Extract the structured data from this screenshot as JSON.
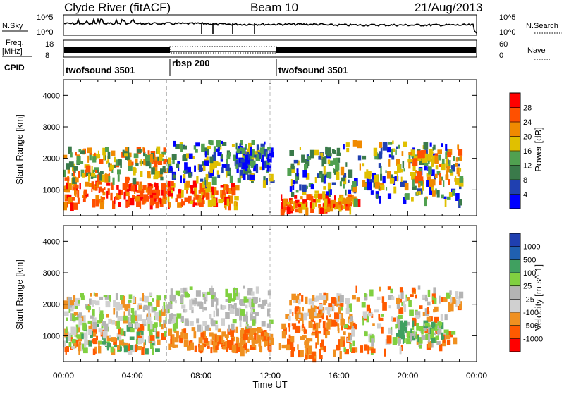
{
  "header": {
    "title": "Clyde River (fitACF)",
    "beam": "Beam 10",
    "date": "21/Aug/2013"
  },
  "nsky_panel": {
    "left_label": "N.Sky",
    "right_label": "N.Search",
    "left_ticks": [
      "10^5",
      "10^0"
    ],
    "right_ticks": [
      "10^5",
      "10^0"
    ]
  },
  "freq_panel": {
    "left_label": "Freq.",
    "left_unit": "[MHz]",
    "right_label": "Nave",
    "left_ticks": [
      "18",
      "8"
    ],
    "right_ticks": [
      "60",
      "0"
    ]
  },
  "cpid": {
    "label": "CPID",
    "segments": [
      {
        "name": "twofsound 3501",
        "start_h": 0,
        "end_h": 6
      },
      {
        "name": "rbsp 200",
        "start_h": 6,
        "end_h": 12
      },
      {
        "name": "twofsound 3501",
        "start_h": 12,
        "end_h": 24
      }
    ]
  },
  "colors": {
    "power": [
      "#0000ff",
      "#2040b0",
      "#3a7a4a",
      "#50a050",
      "#e0c000",
      "#f08a00",
      "#ff5000",
      "#ff0000"
    ],
    "velocity": [
      "#ff0000",
      "#ff5a00",
      "#f09020",
      "#d0d0d0",
      "#b4b4b4",
      "#80d040",
      "#40a060",
      "#2060b0",
      "#1f3fb0"
    ]
  },
  "chart_data": [
    {
      "type": "heatmap",
      "name": "power",
      "ylabel": "Slant Range [km]",
      "x_range_h": [
        0,
        24
      ],
      "y_range_km": [
        180,
        4500
      ],
      "yticks": [
        1000,
        2000,
        3000,
        4000
      ],
      "colorbar_label": "Power [dB]",
      "colorbar_ticks": [
        "28",
        "24",
        "20",
        "16",
        "12",
        "8",
        "4"
      ]
    },
    {
      "type": "heatmap",
      "name": "velocity",
      "ylabel": "Slant Range [km]",
      "xlabel": "Time UT",
      "x_range_h": [
        0,
        24
      ],
      "y_range_km": [
        180,
        4500
      ],
      "yticks": [
        1000,
        2000,
        3000,
        4000
      ],
      "xticks": [
        "00:00",
        "04:00",
        "08:00",
        "12:00",
        "16:00",
        "20:00",
        "00:00"
      ],
      "colorbar_label": "Velocity [m s^-1]",
      "colorbar_ticks": [
        "1000",
        "500",
        "100",
        "25",
        "-25",
        "-100",
        "-500",
        "-1000"
      ]
    }
  ]
}
